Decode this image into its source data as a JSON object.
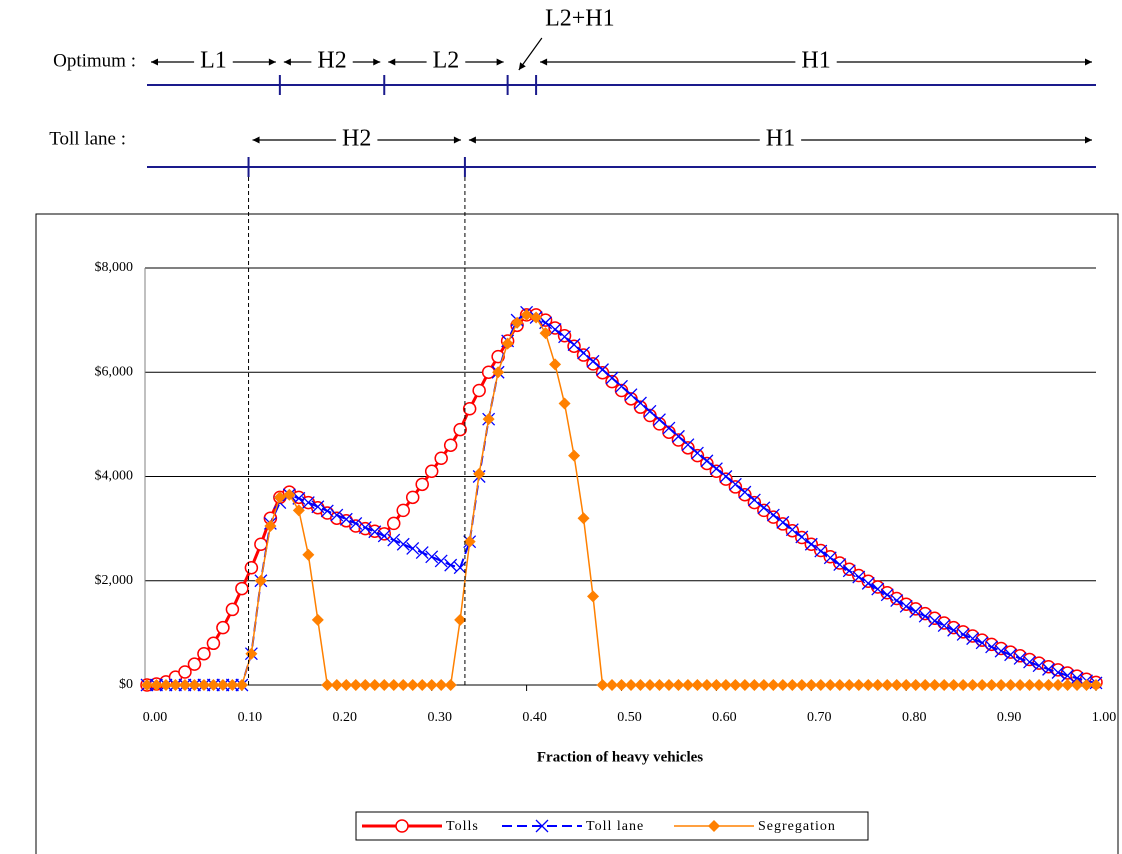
{
  "chart_data": {
    "type": "line",
    "x_label": "Fraction of heavy vehicles",
    "x": [
      0,
      0.01,
      0.02,
      0.03,
      0.04,
      0.05,
      0.06,
      0.07,
      0.08,
      0.09,
      0.1,
      0.11,
      0.12,
      0.13,
      0.14,
      0.15,
      0.16,
      0.17,
      0.18,
      0.19,
      0.2,
      0.21,
      0.22,
      0.23,
      0.24,
      0.25,
      0.26,
      0.27,
      0.28,
      0.29,
      0.3,
      0.31,
      0.32,
      0.33,
      0.34,
      0.35,
      0.36,
      0.37,
      0.38,
      0.39,
      0.4,
      0.41,
      0.42,
      0.43,
      0.44,
      0.45,
      0.46,
      0.47,
      0.48,
      0.49,
      0.5,
      0.51,
      0.52,
      0.53,
      0.54,
      0.55,
      0.56,
      0.57,
      0.58,
      0.59,
      0.6,
      0.61,
      0.62,
      0.63,
      0.64,
      0.65,
      0.66,
      0.67,
      0.68,
      0.69,
      0.7,
      0.71,
      0.72,
      0.73,
      0.74,
      0.75,
      0.76,
      0.77,
      0.78,
      0.79,
      0.8,
      0.81,
      0.82,
      0.83,
      0.84,
      0.85,
      0.86,
      0.87,
      0.88,
      0.89,
      0.9,
      0.91,
      0.92,
      0.93,
      0.94,
      0.95,
      0.96,
      0.97,
      0.98,
      0.99,
      1
    ],
    "series": [
      {
        "name": "Tolls",
        "color": "#ff0000",
        "marker": "circle",
        "dash": false,
        "width": 3,
        "values": [
          0,
          20,
          60,
          150,
          250,
          400,
          600,
          800,
          1100,
          1450,
          1850,
          2250,
          2700,
          3200,
          3600,
          3700,
          3600,
          3500,
          3400,
          3300,
          3200,
          3150,
          3050,
          3000,
          2950,
          2900,
          3100,
          3350,
          3600,
          3850,
          4100,
          4350,
          4600,
          4900,
          5300,
          5650,
          6000,
          6300,
          6600,
          6900,
          7100,
          7100,
          7000,
          6850,
          6700,
          6500,
          6330,
          6160,
          5990,
          5820,
          5650,
          5490,
          5330,
          5170,
          5010,
          4850,
          4700,
          4550,
          4400,
          4250,
          4100,
          3950,
          3800,
          3650,
          3500,
          3350,
          3220,
          3090,
          2960,
          2830,
          2700,
          2580,
          2460,
          2340,
          2220,
          2100,
          1990,
          1880,
          1770,
          1660,
          1550,
          1460,
          1370,
          1280,
          1190,
          1100,
          1020,
          940,
          860,
          780,
          700,
          630,
          560,
          490,
          420,
          350,
          290,
          230,
          170,
          110,
          50
        ]
      },
      {
        "name": "Toll lane",
        "color": "#0000ff",
        "marker": "x",
        "dash": true,
        "width": 2,
        "values": [
          0,
          0,
          0,
          0,
          0,
          0,
          0,
          0,
          0,
          0,
          0,
          600,
          2000,
          3100,
          3500,
          3650,
          3580,
          3500,
          3420,
          3340,
          3260,
          3180,
          3100,
          3020,
          2940,
          2860,
          2780,
          2700,
          2620,
          2540,
          2460,
          2380,
          2300,
          2250,
          2750,
          4000,
          5100,
          6000,
          6600,
          7000,
          7150,
          7050,
          6950,
          6820,
          6680,
          6530,
          6370,
          6210,
          6050,
          5890,
          5730,
          5570,
          5410,
          5250,
          5090,
          4930,
          4770,
          4610,
          4450,
          4300,
          4150,
          4000,
          3850,
          3700,
          3550,
          3400,
          3260,
          3120,
          2980,
          2840,
          2700,
          2570,
          2440,
          2310,
          2190,
          2070,
          1950,
          1840,
          1730,
          1620,
          1510,
          1410,
          1320,
          1230,
          1140,
          1050,
          970,
          890,
          810,
          730,
          650,
          580,
          510,
          440,
          370,
          300,
          240,
          180,
          130,
          80,
          40
        ]
      },
      {
        "name": "Segregation",
        "color": "#ff8000",
        "marker": "diamond",
        "dash": false,
        "width": 1.5,
        "values": [
          0,
          0,
          0,
          0,
          0,
          0,
          0,
          0,
          0,
          0,
          0,
          600,
          2000,
          3050,
          3600,
          3650,
          3350,
          2500,
          1250,
          0,
          0,
          0,
          0,
          0,
          0,
          0,
          0,
          0,
          0,
          0,
          0,
          0,
          0,
          1250,
          2750,
          4050,
          5100,
          6000,
          6550,
          6950,
          7100,
          7050,
          6750,
          6150,
          5400,
          4400,
          3200,
          1700,
          0,
          0,
          0,
          0,
          0,
          0,
          0,
          0,
          0,
          0,
          0,
          0,
          0,
          0,
          0,
          0,
          0,
          0,
          0,
          0,
          0,
          0,
          0,
          0,
          0,
          0,
          0,
          0,
          0,
          0,
          0,
          0,
          0,
          0,
          0,
          0,
          0,
          0,
          0,
          0,
          0,
          0,
          0,
          0,
          0,
          0,
          0,
          0,
          0,
          0,
          0,
          0,
          0
        ]
      }
    ],
    "xlim": [
      0,
      1
    ],
    "xticks": [
      {
        "value": 0,
        "label": "0.00"
      },
      {
        "value": 0.1,
        "label": "0.10"
      },
      {
        "value": 0.2,
        "label": "0.20"
      },
      {
        "value": 0.3,
        "label": "0.30"
      },
      {
        "value": 0.4,
        "label": "0.40"
      },
      {
        "value": 0.5,
        "label": "0.50"
      },
      {
        "value": 0.6,
        "label": "0.60"
      },
      {
        "value": 0.7,
        "label": "0.70"
      },
      {
        "value": 0.8,
        "label": "0.80"
      },
      {
        "value": 0.9,
        "label": "0.90"
      },
      {
        "value": 1,
        "label": "1.00"
      }
    ],
    "ylim": [
      0,
      8000
    ],
    "yticks": [
      {
        "value": 0,
        "label": "$0"
      },
      {
        "value": 2000,
        "label": "$2,000"
      },
      {
        "value": 4000,
        "label": "$4,000"
      },
      {
        "value": 6000,
        "label": "$6,000"
      },
      {
        "value": 8000,
        "label": "$8,000"
      }
    ],
    "grid": true,
    "legend": "bottom",
    "annotations": [
      {
        "label": "Optimum :",
        "ticks": [
          0.14,
          0.25,
          0.38,
          0.41
        ],
        "regions": [
          {
            "label": "L1",
            "from": 0,
            "to": 0.14
          },
          {
            "label": "H2",
            "from": 0.14,
            "to": 0.25
          },
          {
            "label": "L2",
            "from": 0.25,
            "to": 0.38
          },
          {
            "label": "L2+H1",
            "from": 0.38,
            "to": 0.41,
            "callout": true
          },
          {
            "label": "H1",
            "from": 0.41,
            "to": 1
          }
        ]
      },
      {
        "label": "Toll lane :",
        "ticks": [
          0.107,
          0.335
        ],
        "dropped": true,
        "regions": [
          {
            "label": "H2",
            "from": 0.107,
            "to": 0.335
          },
          {
            "label": "H1",
            "from": 0.335,
            "to": 1
          }
        ]
      }
    ]
  }
}
